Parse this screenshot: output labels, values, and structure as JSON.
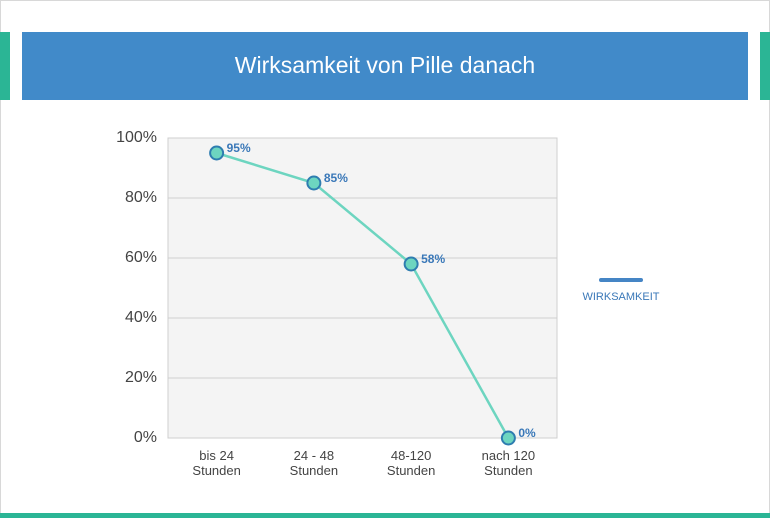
{
  "chart_data": {
    "type": "line",
    "title": "Wirksamkeit von Pille danach",
    "categories": [
      [
        "bis 24",
        "Stunden"
      ],
      [
        "24 - 48",
        "Stunden"
      ],
      [
        "48-120",
        "Stunden"
      ],
      [
        "nach 120",
        "Stunden"
      ]
    ],
    "series": [
      {
        "name": "WIRKSAMKEIT",
        "color": "#6dd5c0",
        "marker_stroke": "#2e7db0",
        "legend_color": "#4585c5",
        "values": [
          95,
          85,
          58,
          0
        ],
        "value_labels": [
          "95%",
          "85%",
          "58%",
          "0%"
        ]
      }
    ],
    "ylim": [
      0,
      100
    ],
    "yticks": [
      {
        "value": 0,
        "label": "0%"
      },
      {
        "value": 20,
        "label": "20%"
      },
      {
        "value": 40,
        "label": "40%"
      },
      {
        "value": 60,
        "label": "60%"
      },
      {
        "value": 80,
        "label": "80%"
      },
      {
        "value": 100,
        "label": "100%"
      }
    ],
    "grid": true,
    "legend": "right"
  }
}
